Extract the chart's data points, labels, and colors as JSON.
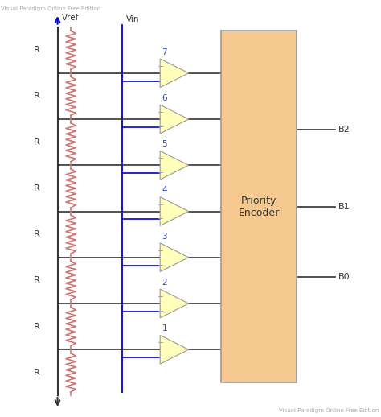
{
  "watermark_top": "Visual Paradigm Online Free Edition",
  "watermark_bot": "Visual Paradigm Online Free Edition",
  "bg_color": "#ffffff",
  "resistor_color": "#cc7777",
  "wire_color": "#333333",
  "vin_wire_color": "#0000cc",
  "comparator_fill": "#ffffbb",
  "comparator_edge": "#999999",
  "encoder_fill": "#f5c890",
  "encoder_edge": "#999999",
  "encoder_label": "Priority\nEncoder",
  "output_labels": [
    "B2",
    "B1",
    "B0"
  ],
  "comparator_labels": [
    "7",
    "6",
    "5",
    "4",
    "3",
    "2",
    "1"
  ],
  "resistor_label": "R",
  "vref_label": "Vref",
  "vin_label": "Vin",
  "n_comparators": 7,
  "n_resistors": 8,
  "fig_width": 4.74,
  "fig_height": 5.18,
  "dpi": 100,
  "xlim": [
    0,
    10
  ],
  "ylim": [
    0,
    11
  ]
}
